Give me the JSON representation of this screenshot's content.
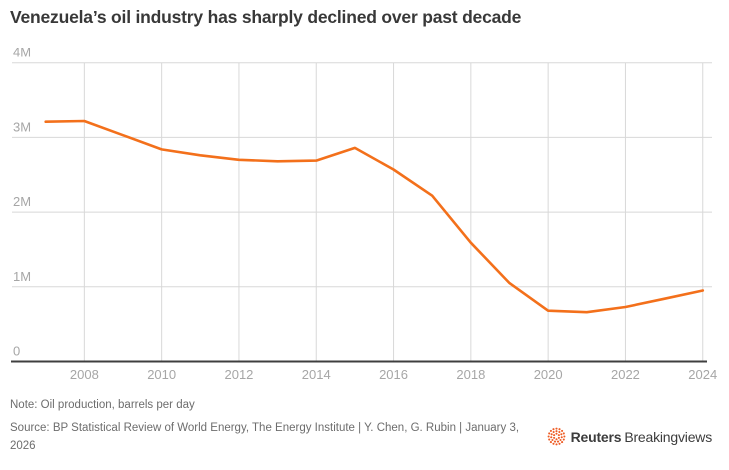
{
  "header": {
    "title": "Venezuela’s oil industry has sharply declined over past decade"
  },
  "chart_data": {
    "type": "line",
    "title": "Venezuela’s oil industry has sharply declined over past decade",
    "x": [
      2007,
      2008,
      2009,
      2010,
      2011,
      2012,
      2013,
      2014,
      2015,
      2016,
      2017,
      2018,
      2019,
      2020,
      2021,
      2022,
      2023,
      2024
    ],
    "series": [
      {
        "name": "Oil production, barrels per day",
        "values": [
          3.21,
          3.22,
          3.03,
          2.84,
          2.76,
          2.7,
          2.68,
          2.69,
          2.86,
          2.57,
          2.22,
          1.59,
          1.05,
          0.68,
          0.66,
          0.73,
          0.84,
          0.95
        ]
      }
    ],
    "unit": "million barrels per day",
    "ylim": [
      0,
      4
    ],
    "yticks": {
      "values": [
        0,
        1,
        2,
        3,
        4
      ],
      "labels": [
        "0",
        "1M",
        "2M",
        "3M",
        "4M"
      ]
    },
    "xticks": [
      2008,
      2010,
      2012,
      2014,
      2016,
      2018,
      2020,
      2022,
      2024
    ],
    "grid": true,
    "legend": false,
    "colors": {
      "line": "#F3701B",
      "grid": "#D8D8D8",
      "axis": "#3F3F3F",
      "tick": "#A6A6A6"
    }
  },
  "footer": {
    "note": "Note: Oil production, barrels per day",
    "source": "Source: BP Statistical Review of World Energy, The Energy Institute | Y. Chen, G. Rubin | January 3, 2026",
    "brand": "Reuters",
    "brand_suffix": "Breakingviews",
    "logo_color": "#EE5B23"
  }
}
